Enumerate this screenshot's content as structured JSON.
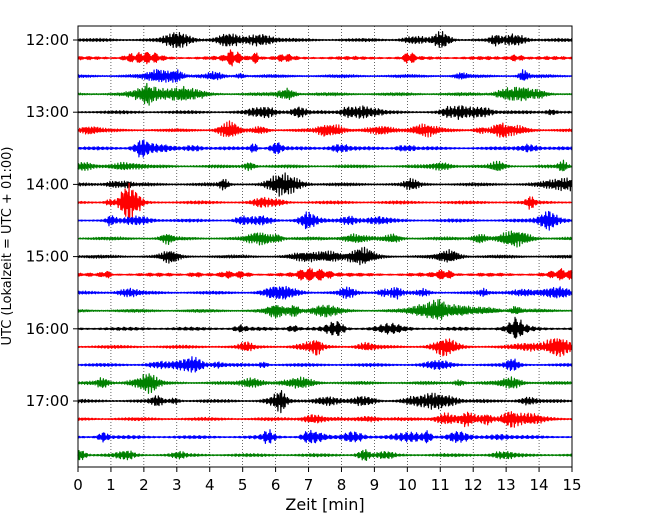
{
  "chart_data": {
    "type": "line",
    "chart_kind": "helicorder",
    "xlabel": "Zeit  [min]",
    "ylabel": "UTC (Lokalzeit = UTC + 01:00)",
    "xlim": [
      0,
      15
    ],
    "x_ticks": [
      0,
      1,
      2,
      3,
      4,
      5,
      6,
      7,
      8,
      9,
      10,
      11,
      12,
      13,
      14,
      15
    ],
    "grid": "vertical dotted at each minute",
    "trace_interval_minutes": 15,
    "trace_colors_cycle": [
      "#000000",
      "#ff0000",
      "#0000ff",
      "#008000"
    ],
    "y_ticks": [
      {
        "label": "12:00",
        "trace_index": 0
      },
      {
        "label": "13:00",
        "trace_index": 4
      },
      {
        "label": "14:00",
        "trace_index": 8
      },
      {
        "label": "15:00",
        "trace_index": 12
      },
      {
        "label": "16:00",
        "trace_index": 16
      },
      {
        "label": "17:00",
        "trace_index": 20
      }
    ],
    "traces": [
      {
        "start": "12:00",
        "color": "#000000"
      },
      {
        "start": "12:15",
        "color": "#ff0000"
      },
      {
        "start": "12:30",
        "color": "#0000ff"
      },
      {
        "start": "12:45",
        "color": "#008000"
      },
      {
        "start": "13:00",
        "color": "#000000"
      },
      {
        "start": "13:15",
        "color": "#ff0000"
      },
      {
        "start": "13:30",
        "color": "#0000ff"
      },
      {
        "start": "13:45",
        "color": "#008000"
      },
      {
        "start": "14:00",
        "color": "#000000"
      },
      {
        "start": "14:15",
        "color": "#ff0000"
      },
      {
        "start": "14:30",
        "color": "#0000ff"
      },
      {
        "start": "14:45",
        "color": "#008000"
      },
      {
        "start": "15:00",
        "color": "#000000"
      },
      {
        "start": "15:15",
        "color": "#ff0000"
      },
      {
        "start": "15:30",
        "color": "#0000ff"
      },
      {
        "start": "15:45",
        "color": "#008000"
      },
      {
        "start": "16:00",
        "color": "#000000"
      },
      {
        "start": "16:15",
        "color": "#ff0000"
      },
      {
        "start": "16:30",
        "color": "#0000ff"
      },
      {
        "start": "16:45",
        "color": "#008000"
      },
      {
        "start": "17:00",
        "color": "#000000"
      },
      {
        "start": "17:15",
        "color": "#ff0000"
      },
      {
        "start": "17:30",
        "color": "#0000ff"
      },
      {
        "start": "17:45",
        "color": "#008000"
      }
    ]
  }
}
